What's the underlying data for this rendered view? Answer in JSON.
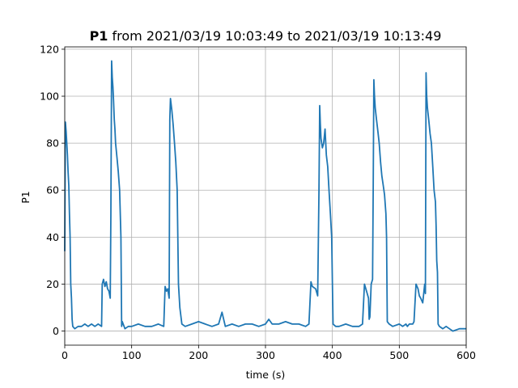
{
  "chart_data": {
    "type": "line",
    "title_bold": "P1",
    "title_rest": " from 2021/03/19 10:03:49 to 2021/03/19 10:13:49",
    "xlabel": "time (s)",
    "ylabel": "P1",
    "xlim": [
      0,
      600
    ],
    "ylim": [
      -6,
      121
    ],
    "xticks": [
      0,
      100,
      200,
      300,
      400,
      500,
      600
    ],
    "yticks": [
      0,
      20,
      40,
      60,
      80,
      100,
      120
    ],
    "xtick_labels": [
      "0",
      "100",
      "200",
      "300",
      "400",
      "500",
      "600"
    ],
    "ytick_labels": [
      "0",
      "20",
      "40",
      "60",
      "80",
      "100",
      "120"
    ],
    "grid": true,
    "line_color": "#1f77b4",
    "series": [
      {
        "x": [
          0,
          1,
          2,
          3,
          4,
          5,
          6,
          7,
          8,
          9,
          10,
          11,
          12,
          15,
          20,
          25,
          30,
          35,
          40,
          45,
          50,
          55,
          56,
          58,
          60,
          62,
          64,
          66,
          68,
          69,
          70,
          71,
          72,
          73,
          74,
          75,
          76,
          78,
          80,
          82,
          84,
          85,
          86,
          90,
          95,
          100,
          110,
          120,
          130,
          140,
          148,
          150,
          152,
          154,
          155,
          156,
          157,
          158,
          160,
          162,
          164,
          166,
          168,
          170,
          172,
          175,
          180,
          190,
          200,
          210,
          220,
          230,
          235,
          240,
          250,
          260,
          270,
          280,
          290,
          300,
          305,
          310,
          320,
          330,
          340,
          350,
          360,
          365,
          368,
          370,
          375,
          378,
          380,
          381,
          382,
          383,
          385,
          387,
          389,
          391,
          393,
          395,
          397,
          399,
          400,
          401,
          405,
          410,
          420,
          430,
          440,
          445,
          448,
          450,
          452,
          454,
          455,
          456,
          458,
          460,
          461,
          462,
          463,
          464,
          466,
          468,
          470,
          472,
          474,
          476,
          478,
          480,
          481,
          482,
          485,
          490,
          500,
          505,
          510,
          512,
          515,
          520,
          522,
          525,
          528,
          530,
          532,
          535,
          538,
          539,
          540,
          541,
          542,
          544,
          546,
          548,
          550,
          552,
          554,
          555,
          556,
          557,
          558,
          560,
          565,
          570,
          575,
          580,
          590,
          600
        ],
        "y": [
          34,
          89,
          85,
          80,
          75,
          68,
          62,
          50,
          40,
          20,
          14,
          5,
          2,
          1,
          2,
          2,
          3,
          2,
          3,
          2,
          3,
          2,
          20,
          22,
          19,
          21,
          18,
          17,
          14,
          50,
          115,
          108,
          104,
          98,
          90,
          86,
          80,
          74,
          68,
          60,
          40,
          2,
          4,
          1,
          2,
          2,
          3,
          2,
          2,
          3,
          2,
          19,
          17,
          18,
          16,
          14,
          90,
          99,
          94,
          88,
          80,
          72,
          60,
          20,
          10,
          3,
          2,
          3,
          4,
          3,
          2,
          3,
          8,
          2,
          3,
          2,
          3,
          3,
          2,
          3,
          5,
          3,
          3,
          4,
          3,
          3,
          2,
          3,
          21,
          19,
          18,
          15,
          60,
          96,
          88,
          82,
          78,
          80,
          86,
          75,
          70,
          60,
          50,
          40,
          20,
          3,
          2,
          2,
          3,
          2,
          2,
          3,
          20,
          18,
          16,
          14,
          5,
          6,
          20,
          22,
          60,
          107,
          100,
          95,
          90,
          85,
          80,
          72,
          66,
          62,
          58,
          50,
          40,
          4,
          3,
          2,
          3,
          2,
          3,
          2,
          3,
          3,
          4,
          20,
          18,
          15,
          14,
          12,
          20,
          16,
          110,
          100,
          95,
          90,
          84,
          80,
          70,
          60,
          55,
          45,
          30,
          25,
          3,
          2,
          1,
          2,
          1,
          0,
          1,
          1
        ]
      }
    ]
  }
}
